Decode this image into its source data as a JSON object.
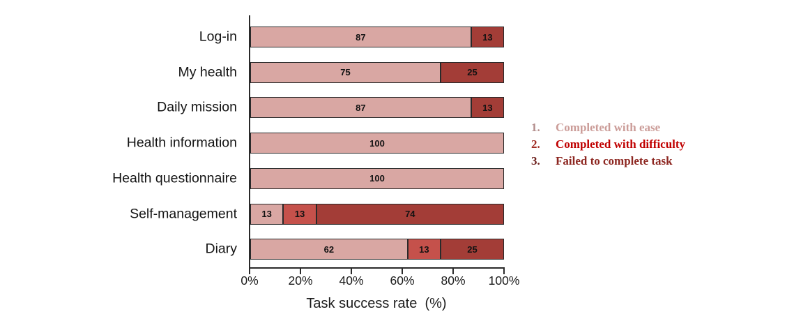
{
  "chart_data": {
    "type": "bar",
    "orientation": "horizontal",
    "stacked": true,
    "title": "",
    "xlabel": "Task success rate  (%)",
    "x_ticks": [
      "0%",
      "20%",
      "40%",
      "60%",
      "80%",
      "100%"
    ],
    "xlim": [
      0,
      100
    ],
    "grid": false,
    "categories": [
      "Log-in",
      "My health",
      "Daily mission",
      "Health information",
      "Health questionnaire",
      "Self-management",
      "Diary"
    ],
    "series": [
      {
        "name": "Completed with ease",
        "color": "#d9a7a3",
        "values": [
          87,
          75,
          87,
          100,
          100,
          13,
          62
        ]
      },
      {
        "name": "Completed with difficulty",
        "color": "#c5514b",
        "values": [
          0,
          0,
          0,
          0,
          0,
          13,
          13
        ]
      },
      {
        "name": "Failed to complete task",
        "color": "#a33d37",
        "values": [
          13,
          25,
          13,
          0,
          0,
          74,
          25
        ]
      }
    ],
    "bar_value_label_color": "#121212",
    "axis_color": "#2a2a2a",
    "legend": {
      "position": "right",
      "items": [
        {
          "number": "1.",
          "label": "Completed with ease",
          "number_color": "#b28d8b",
          "label_color": "#cb9c98"
        },
        {
          "number": "2.",
          "label": "Completed with difficulty",
          "number_color": "#a02a22",
          "label_color": "#c00000"
        },
        {
          "number": "3.",
          "label": "Failed to complete task",
          "number_color": "#6d211d",
          "label_color": "#8d2721"
        }
      ]
    }
  }
}
